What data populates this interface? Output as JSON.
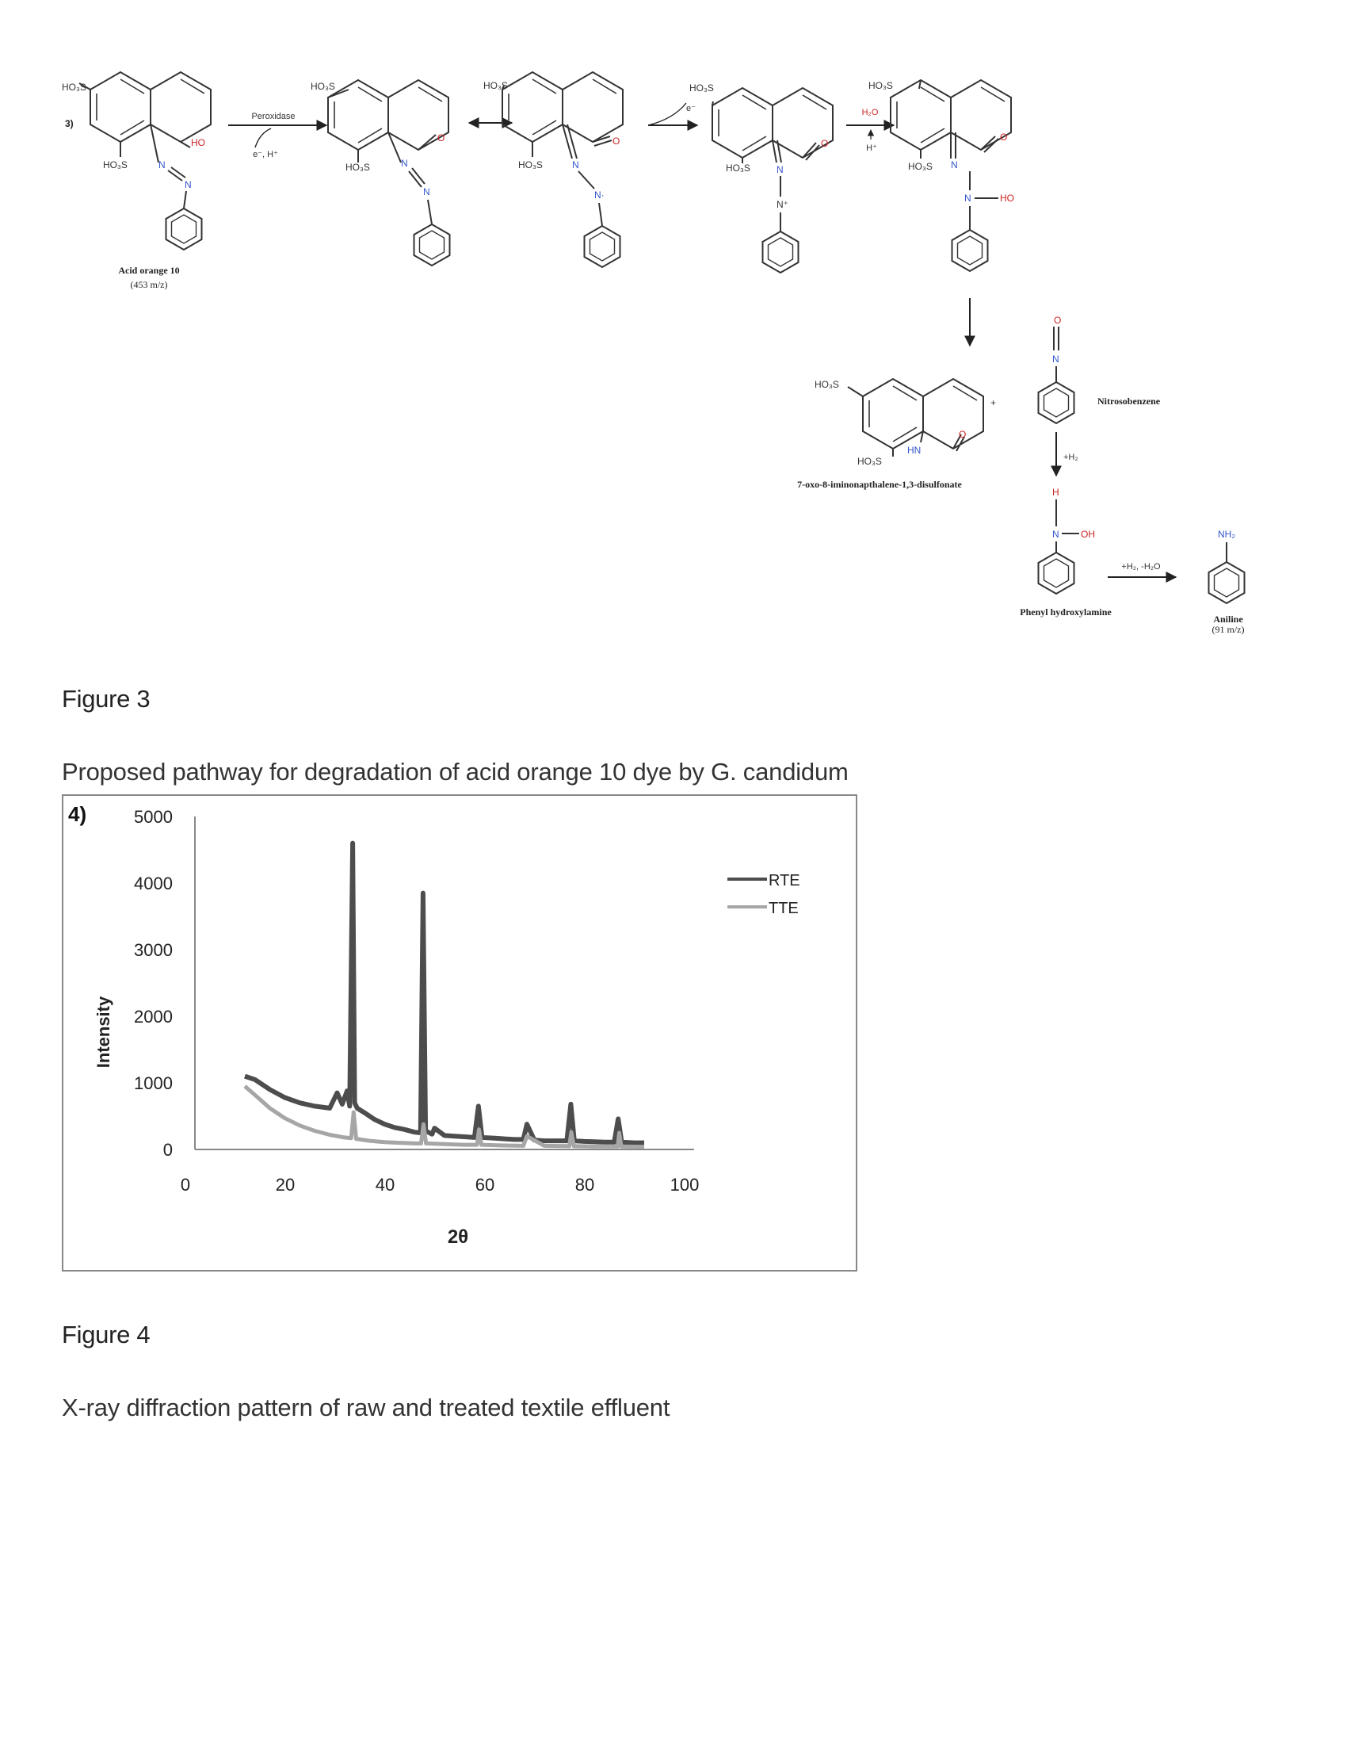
{
  "figure3": {
    "panel_label": "3)",
    "step_labels": {
      "peroxidase": "Peroxidase",
      "e_h": "e⁻, H⁺",
      "e": "e⁻",
      "h2o": "H₂O",
      "h_plus": "H⁺",
      "plus": "+",
      "h2": "+H₂",
      "h2_h2o": "+H₂, -H₂O"
    },
    "atoms": {
      "ho3s": "HO₃S",
      "ho": "HO",
      "n": "N",
      "n_plus": "N⁺",
      "hn": "HN",
      "o": "O",
      "oh": "OH",
      "h": "H",
      "nh2": "NH₂",
      "n_dot": "N·"
    },
    "compounds": {
      "acid_orange": "Acid orange 10",
      "acid_orange_mz": "(453 m/z)",
      "iminonaphthalene": "7-oxo-8-iminonapthalene-1,3-disulfonate",
      "nitrosobenzene": "Nitrosobenzene",
      "phenyl_hydroxylamine": "Phenyl hydroxylamine",
      "aniline": "Aniline",
      "aniline_mz": "(91 m/z)"
    }
  },
  "figure3_caption": {
    "title": "Figure 3",
    "text": "Proposed pathway for degradation of acid orange 10 dye by G. candidum"
  },
  "figure4_caption": {
    "title": "Figure 4",
    "text": "X-ray diffraction pattern of raw and treated textile effluent"
  },
  "colors": {
    "rte": "#4d4d4d",
    "tte": "#a6a6a6",
    "hetero_blue": "#3355cc",
    "hetero_red": "#cc2222"
  },
  "chart_data": {
    "type": "line",
    "panel_label": "4)",
    "title": "",
    "xlabel": "2θ",
    "ylabel": "Intensity",
    "xlim": [
      0,
      100
    ],
    "ylim": [
      0,
      5000
    ],
    "x_ticks": [
      "0",
      "20",
      "40",
      "60",
      "80",
      "100"
    ],
    "y_ticks": [
      "5000",
      "4000",
      "3000",
      "2000",
      "1000",
      "0"
    ],
    "legend_position": "right",
    "series": [
      {
        "name": "RTE",
        "x": [
          10,
          12,
          15,
          18,
          21,
          24,
          27,
          28.5,
          29.5,
          30.5,
          31,
          31.6,
          32,
          32.5,
          34,
          36,
          38,
          40,
          42,
          44,
          45.2,
          45.7,
          46.2,
          47.5,
          48,
          50,
          52,
          54,
          56,
          56.8,
          57.5,
          60,
          62,
          64,
          65.8,
          66.5,
          68,
          70,
          72,
          74.5,
          75.3,
          76,
          78,
          80,
          82,
          84,
          84.8,
          85.5,
          88,
          90
        ],
        "y": [
          1100,
          1050,
          900,
          780,
          700,
          650,
          620,
          850,
          680,
          880,
          650,
          4600,
          700,
          620,
          550,
          450,
          380,
          330,
          300,
          260,
          250,
          3850,
          280,
          230,
          320,
          210,
          200,
          190,
          180,
          650,
          180,
          170,
          160,
          150,
          150,
          380,
          140,
          130,
          130,
          130,
          680,
          130,
          120,
          115,
          110,
          110,
          460,
          110,
          100,
          100
        ]
      },
      {
        "name": "TTE",
        "x": [
          10,
          12,
          15,
          18,
          21,
          24,
          27,
          30,
          31.3,
          31.8,
          32.3,
          35,
          38,
          41,
          44,
          45.3,
          45.8,
          46.3,
          50,
          54,
          56.5,
          56.9,
          57.4,
          62,
          65.8,
          66.5,
          70,
          75,
          75.4,
          75.9,
          80,
          84.7,
          85,
          85.4,
          90
        ],
        "y": [
          950,
          820,
          620,
          470,
          360,
          280,
          220,
          180,
          170,
          560,
          160,
          130,
          110,
          100,
          90,
          90,
          380,
          90,
          80,
          70,
          70,
          300,
          70,
          60,
          55,
          200,
          55,
          50,
          260,
          50,
          45,
          45,
          250,
          45,
          40
        ]
      }
    ]
  }
}
